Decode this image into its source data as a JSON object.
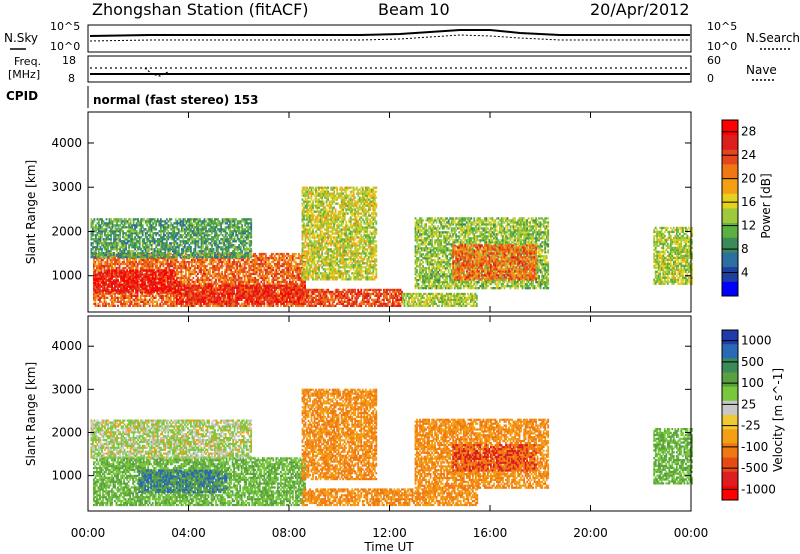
{
  "header": {
    "station": "Zhongshan Station (fitACF)",
    "beam": "Beam 10",
    "date": "20/Apr/2012"
  },
  "noise_panel": {
    "left_label": "N.Sky",
    "right_label": "N.Search",
    "left_ticks": [
      "10^5",
      "10^0"
    ],
    "right_ticks": [
      "10^5",
      "10^0"
    ]
  },
  "freq_panel": {
    "left_label_line1": "Freq.",
    "left_label_line2": "[MHz]",
    "right_label": "Nave",
    "left_ticks": [
      "18",
      "8"
    ],
    "right_ticks": [
      "60",
      "0"
    ]
  },
  "cpid": {
    "label": "CPID",
    "text": "normal (fast stereo) 153"
  },
  "colors": {
    "power_scale": [
      "#0000ff",
      "#1e3fa0",
      "#2b6fa0",
      "#3c8a5a",
      "#5ab040",
      "#a0c83c",
      "#e6d21e",
      "#f5a014",
      "#f07814",
      "#e6461e",
      "#dc1e1e",
      "#ff0000"
    ],
    "velocity_scale": [
      "#1e3caa",
      "#2a6ab4",
      "#3c8a5a",
      "#5aa040",
      "#78c83c",
      "#c8c8c8",
      "#f0c832",
      "#f5a014",
      "#f07814",
      "#e64b14",
      "#dc1e1e",
      "#ff0000"
    ]
  },
  "chart_data": [
    {
      "type": "heatmap",
      "panel": "power",
      "xlabel": "Time UT",
      "ylabel": "Slant Range [km]",
      "x_ticks": [
        "00:00",
        "04:00",
        "08:00",
        "12:00",
        "16:00",
        "20:00",
        "00:00"
      ],
      "x_range_hours": [
        0,
        24
      ],
      "y_ticks": [
        1000,
        2000,
        3000,
        4000
      ],
      "ylim": [
        180,
        4700
      ],
      "colorbar_label": "Power [dB]",
      "colorbar_ticks": [
        4,
        8,
        12,
        16,
        20,
        24,
        28
      ],
      "colorbar_range": [
        0,
        30
      ],
      "regions": [
        {
          "t0": 0.2,
          "t1": 8.6,
          "r0": 300,
          "r1": 1500,
          "v": 22
        },
        {
          "t0": 0.2,
          "t1": 3.5,
          "r0": 600,
          "r1": 1100,
          "v": 27
        },
        {
          "t0": 3.5,
          "t1": 8.6,
          "r0": 350,
          "r1": 800,
          "v": 26
        },
        {
          "t0": 0.1,
          "t1": 6.5,
          "r0": 1400,
          "r1": 2300,
          "v": 10
        },
        {
          "t0": 8.5,
          "t1": 12.5,
          "r0": 300,
          "r1": 700,
          "v": 24
        },
        {
          "t0": 8.5,
          "t1": 11.5,
          "r0": 900,
          "r1": 3000,
          "v": 15
        },
        {
          "t0": 12.5,
          "t1": 15.5,
          "r0": 300,
          "r1": 600,
          "v": 14
        },
        {
          "t0": 13.0,
          "t1": 18.3,
          "r0": 700,
          "r1": 2300,
          "v": 13
        },
        {
          "t0": 14.5,
          "t1": 17.8,
          "r0": 900,
          "r1": 1700,
          "v": 22
        },
        {
          "t0": 22.5,
          "t1": 24.0,
          "r0": 800,
          "r1": 2100,
          "v": 14
        }
      ]
    },
    {
      "type": "heatmap",
      "panel": "velocity",
      "xlabel": "Time UT",
      "ylabel": "Slant Range [km]",
      "x_ticks": [
        "00:00",
        "04:00",
        "08:00",
        "12:00",
        "16:00",
        "20:00",
        "00:00"
      ],
      "x_range_hours": [
        0,
        24
      ],
      "y_ticks": [
        1000,
        2000,
        3000,
        4000
      ],
      "ylim": [
        180,
        4700
      ],
      "colorbar_label": "Velocity [m s^-1]",
      "colorbar_ticks": [
        1000,
        500,
        100,
        25,
        -25,
        -100,
        -500,
        -1000
      ],
      "regions": [
        {
          "t0": 0.2,
          "t1": 8.6,
          "r0": 300,
          "r1": 1400,
          "v": 100
        },
        {
          "t0": 0.1,
          "t1": 6.5,
          "r0": 1400,
          "r1": 2300,
          "v": 25
        },
        {
          "t0": 2.0,
          "t1": 5.5,
          "r0": 600,
          "r1": 1100,
          "v": 500
        },
        {
          "t0": 8.5,
          "t1": 15.5,
          "r0": 300,
          "r1": 700,
          "v": -100
        },
        {
          "t0": 8.5,
          "t1": 11.5,
          "r0": 900,
          "r1": 3000,
          "v": -100
        },
        {
          "t0": 13.0,
          "t1": 18.3,
          "r0": 700,
          "r1": 2300,
          "v": -100
        },
        {
          "t0": 14.5,
          "t1": 17.8,
          "r0": 1100,
          "r1": 1700,
          "v": -500
        },
        {
          "t0": 22.5,
          "t1": 24.0,
          "r0": 800,
          "r1": 2100,
          "v": 100
        }
      ]
    }
  ]
}
